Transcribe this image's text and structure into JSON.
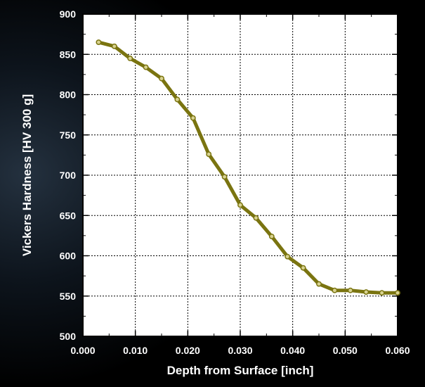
{
  "chart_data": {
    "type": "line",
    "xlabel": "Depth from Surface [inch]",
    "ylabel": "Vickers Hardness [HV 300 g]",
    "xlim": [
      0.0,
      0.06
    ],
    "ylim": [
      500,
      900
    ],
    "x_ticks": [
      "0.000",
      "0.010",
      "0.020",
      "0.030",
      "0.040",
      "0.050",
      "0.060"
    ],
    "y_ticks": [
      "500",
      "550",
      "600",
      "650",
      "700",
      "750",
      "800",
      "850",
      "900"
    ],
    "grid": true,
    "series": [
      {
        "color": "#7a7410",
        "x": [
          0.003,
          0.006,
          0.009,
          0.012,
          0.015,
          0.018,
          0.021,
          0.024,
          0.027,
          0.03,
          0.033,
          0.036,
          0.039,
          0.042,
          0.045,
          0.048,
          0.051,
          0.054,
          0.057,
          0.06
        ],
        "y": [
          865,
          860,
          845,
          834,
          820,
          794,
          771,
          726,
          698,
          663,
          647,
          624,
          599,
          585,
          565,
          557,
          557,
          555,
          554,
          554
        ]
      }
    ]
  }
}
